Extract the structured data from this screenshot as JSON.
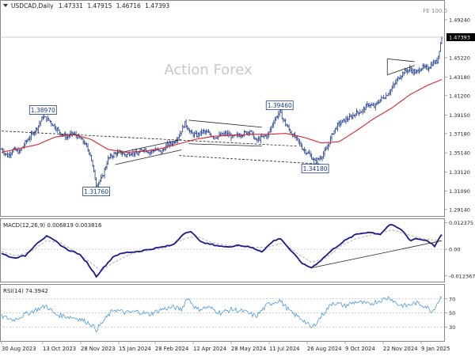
{
  "chart_data": [
    {
      "type": "ohlc",
      "header": {
        "symbol_tf": "USDCAD,Daily",
        "o": "1.47331",
        "h": "1.47915",
        "l": "1.46716",
        "c": "1.47393"
      },
      "fe_label": "FE 100.0",
      "watermark": "Action Forex",
      "current_price": "1.47393",
      "ylim": [
        1.2845,
        1.5125
      ],
      "yticks": [
        "1.49240",
        "1.45220",
        "1.43180",
        "1.41200",
        "1.39150",
        "1.37180",
        "1.35140",
        "1.33120",
        "1.31090",
        "1.29140"
      ],
      "xlabels": [
        "30 Aug 2023",
        "13 Oct 2023",
        "28 Nov 2023",
        "15 Jan 2024",
        "28 Feb 2024",
        "12 Apr 2024",
        "28 May 2024",
        "11 Jul 2024",
        "26 Aug 2024",
        "9 Oct 2024",
        "22 Nov 2024",
        "9 Jan 2025"
      ],
      "xlim": [
        0,
        372
      ],
      "price_anchors": [
        [
          0,
          1.355
        ],
        [
          5,
          1.348
        ],
        [
          10,
          1.355
        ],
        [
          15,
          1.352
        ],
        [
          20,
          1.362
        ],
        [
          25,
          1.37
        ],
        [
          30,
          1.378
        ],
        [
          35,
          1.3897
        ],
        [
          40,
          1.386
        ],
        [
          45,
          1.379
        ],
        [
          50,
          1.372
        ],
        [
          55,
          1.368
        ],
        [
          60,
          1.372
        ],
        [
          65,
          1.368
        ],
        [
          70,
          1.362
        ],
        [
          75,
          1.35
        ],
        [
          80,
          1.3176
        ],
        [
          85,
          1.325
        ],
        [
          90,
          1.345
        ],
        [
          95,
          1.35
        ],
        [
          100,
          1.352
        ],
        [
          105,
          1.349
        ],
        [
          110,
          1.352
        ],
        [
          115,
          1.35
        ],
        [
          120,
          1.356
        ],
        [
          125,
          1.352
        ],
        [
          130,
          1.355
        ],
        [
          135,
          1.352
        ],
        [
          140,
          1.36
        ],
        [
          145,
          1.362
        ],
        [
          150,
          1.37
        ],
        [
          155,
          1.383
        ],
        [
          160,
          1.372
        ],
        [
          165,
          1.37
        ],
        [
          170,
          1.374
        ],
        [
          175,
          1.372
        ],
        [
          180,
          1.368
        ],
        [
          185,
          1.37
        ],
        [
          190,
          1.372
        ],
        [
          195,
          1.368
        ],
        [
          200,
          1.37
        ],
        [
          205,
          1.372
        ],
        [
          210,
          1.375
        ],
        [
          215,
          1.364
        ],
        [
          220,
          1.368
        ],
        [
          225,
          1.37
        ],
        [
          230,
          1.385
        ],
        [
          235,
          1.3946
        ],
        [
          240,
          1.382
        ],
        [
          245,
          1.372
        ],
        [
          250,
          1.365
        ],
        [
          255,
          1.355
        ],
        [
          260,
          1.35
        ],
        [
          265,
          1.3418
        ],
        [
          270,
          1.347
        ],
        [
          275,
          1.356
        ],
        [
          280,
          1.373
        ],
        [
          285,
          1.382
        ],
        [
          290,
          1.386
        ],
        [
          295,
          1.389
        ],
        [
          300,
          1.394
        ],
        [
          305,
          1.396
        ],
        [
          310,
          1.403
        ],
        [
          315,
          1.4
        ],
        [
          320,
          1.408
        ],
        [
          325,
          1.412
        ],
        [
          330,
          1.42
        ],
        [
          335,
          1.43
        ],
        [
          340,
          1.437
        ],
        [
          345,
          1.44
        ],
        [
          350,
          1.436
        ],
        [
          355,
          1.442
        ],
        [
          360,
          1.441
        ],
        [
          365,
          1.447
        ],
        [
          368,
          1.448
        ],
        [
          372,
          1.4739
        ]
      ],
      "sma_anchors": [
        [
          0,
          1.352
        ],
        [
          15,
          1.356
        ],
        [
          30,
          1.36
        ],
        [
          45,
          1.368
        ],
        [
          60,
          1.371
        ],
        [
          75,
          1.366
        ],
        [
          90,
          1.355
        ],
        [
          105,
          1.352
        ],
        [
          120,
          1.353
        ],
        [
          135,
          1.356
        ],
        [
          150,
          1.361
        ],
        [
          165,
          1.366
        ],
        [
          180,
          1.369
        ],
        [
          195,
          1.37
        ],
        [
          210,
          1.371
        ],
        [
          225,
          1.371
        ],
        [
          240,
          1.372
        ],
        [
          255,
          1.368
        ],
        [
          270,
          1.362
        ],
        [
          285,
          1.363
        ],
        [
          300,
          1.375
        ],
        [
          315,
          1.388
        ],
        [
          330,
          1.399
        ],
        [
          345,
          1.413
        ],
        [
          360,
          1.423
        ],
        [
          372,
          1.429
        ]
      ],
      "annotations": [
        {
          "text": "1.38970",
          "x": 35,
          "y": 1.3897,
          "pos": "above"
        },
        {
          "text": "1.31760",
          "x": 80,
          "y": 1.3176,
          "pos": "below"
        },
        {
          "text": "1.39460",
          "x": 235,
          "y": 1.3946,
          "pos": "above"
        },
        {
          "text": "1.34180",
          "x": 265,
          "y": 1.3418,
          "pos": "below"
        }
      ],
      "trendlines": [
        {
          "style": "dashed",
          "points": [
            [
              0,
              1.3745
            ],
            [
              250,
              1.3585
            ]
          ]
        },
        {
          "style": "dashed",
          "points": [
            [
              150,
              1.3485
            ],
            [
              270,
              1.3395
            ]
          ]
        },
        {
          "style": "solid",
          "points": [
            [
              96,
              1.3505
            ],
            [
              152,
              1.3655
            ]
          ]
        },
        {
          "style": "solid",
          "points": [
            [
              96,
              1.339
            ],
            [
              152,
              1.3545
            ]
          ]
        },
        {
          "style": "solid",
          "points": [
            [
              158,
              1.386
            ],
            [
              220,
              1.3785
            ]
          ]
        },
        {
          "style": "solid",
          "points": [
            [
              158,
              1.361
            ],
            [
              220,
              1.3585
            ]
          ]
        },
        {
          "style": "solid",
          "points": [
            [
              326,
              1.451
            ],
            [
              349,
              1.448
            ]
          ]
        },
        {
          "style": "solid",
          "points": [
            [
              326,
              1.434
            ],
            [
              349,
              1.444
            ]
          ]
        },
        {
          "style": "solid",
          "points": [
            [
              326,
              1.451
            ],
            [
              326,
              1.434
            ]
          ]
        }
      ]
    },
    {
      "type": "macd",
      "label": "MACD(12,26,9) 0.006819 0.003816",
      "ylim": [
        -0.015,
        0.014
      ],
      "yticks": [
        "0.012375",
        "0.00",
        "-0.012367"
      ],
      "macd_anchors": [
        [
          0,
          -0.002
        ],
        [
          10,
          -0.004
        ],
        [
          20,
          -0.003
        ],
        [
          30,
          0.003
        ],
        [
          38,
          0.006
        ],
        [
          45,
          0.004
        ],
        [
          55,
          0.0
        ],
        [
          65,
          -0.002
        ],
        [
          72,
          -0.006
        ],
        [
          80,
          -0.0125
        ],
        [
          87,
          -0.008
        ],
        [
          95,
          -0.003
        ],
        [
          105,
          -0.0015
        ],
        [
          115,
          -0.001
        ],
        [
          125,
          0.0
        ],
        [
          135,
          0.001
        ],
        [
          145,
          0.002
        ],
        [
          155,
          0.008
        ],
        [
          160,
          0.008
        ],
        [
          170,
          0.003
        ],
        [
          180,
          0.002
        ],
        [
          190,
          0.001
        ],
        [
          200,
          0.002
        ],
        [
          210,
          0.001
        ],
        [
          220,
          -0.001
        ],
        [
          230,
          0.004
        ],
        [
          236,
          0.005
        ],
        [
          245,
          -0.001
        ],
        [
          255,
          -0.007
        ],
        [
          262,
          -0.0085
        ],
        [
          270,
          -0.005
        ],
        [
          280,
          0.0
        ],
        [
          290,
          0.004
        ],
        [
          300,
          0.007
        ],
        [
          310,
          0.008
        ],
        [
          320,
          0.007
        ],
        [
          328,
          0.0115
        ],
        [
          335,
          0.01
        ],
        [
          340,
          0.008
        ],
        [
          345,
          0.004
        ],
        [
          350,
          0.005
        ],
        [
          360,
          0.004
        ],
        [
          366,
          0.0015
        ],
        [
          372,
          0.006819
        ]
      ],
      "signal_anchors": [
        [
          0,
          -0.001
        ],
        [
          12,
          -0.003
        ],
        [
          25,
          -0.001
        ],
        [
          38,
          0.004
        ],
        [
          50,
          0.003
        ],
        [
          62,
          -0.001
        ],
        [
          75,
          -0.006
        ],
        [
          84,
          -0.01
        ],
        [
          95,
          -0.006
        ],
        [
          110,
          -0.002
        ],
        [
          125,
          -0.0005
        ],
        [
          140,
          0.001
        ],
        [
          155,
          0.005
        ],
        [
          165,
          0.006
        ],
        [
          178,
          0.003
        ],
        [
          195,
          0.0015
        ],
        [
          212,
          0.001
        ],
        [
          225,
          0.001
        ],
        [
          238,
          0.003
        ],
        [
          250,
          -0.002
        ],
        [
          262,
          -0.006
        ],
        [
          274,
          -0.004
        ],
        [
          288,
          0.002
        ],
        [
          300,
          0.005
        ],
        [
          315,
          0.007
        ],
        [
          330,
          0.009
        ],
        [
          342,
          0.007
        ],
        [
          355,
          0.005
        ],
        [
          372,
          0.003816
        ]
      ],
      "trendline": [
        [
          263,
          -0.0085
        ],
        [
          372,
          0.004
        ]
      ]
    },
    {
      "type": "rsi",
      "label": "RSI(14) 74.3942",
      "ylim": [
        10,
        90
      ],
      "yticks": [
        "70",
        "50",
        "30"
      ],
      "rsi_anchors": [
        [
          0,
          45
        ],
        [
          10,
          40
        ],
        [
          20,
          48
        ],
        [
          30,
          55
        ],
        [
          38,
          60
        ],
        [
          45,
          48
        ],
        [
          55,
          45
        ],
        [
          65,
          42
        ],
        [
          75,
          35
        ],
        [
          80,
          26
        ],
        [
          88,
          42
        ],
        [
          95,
          55
        ],
        [
          105,
          50
        ],
        [
          115,
          52
        ],
        [
          125,
          48
        ],
        [
          135,
          55
        ],
        [
          145,
          58
        ],
        [
          152,
          55
        ],
        [
          157,
          72
        ],
        [
          165,
          55
        ],
        [
          175,
          58
        ],
        [
          185,
          50
        ],
        [
          195,
          55
        ],
        [
          205,
          52
        ],
        [
          215,
          45
        ],
        [
          225,
          62
        ],
        [
          235,
          68
        ],
        [
          245,
          50
        ],
        [
          255,
          40
        ],
        [
          262,
          28
        ],
        [
          270,
          45
        ],
        [
          280,
          65
        ],
        [
          290,
          60
        ],
        [
          300,
          66
        ],
        [
          310,
          62
        ],
        [
          320,
          68
        ],
        [
          328,
          72
        ],
        [
          335,
          62
        ],
        [
          342,
          60
        ],
        [
          350,
          64
        ],
        [
          358,
          60
        ],
        [
          364,
          52
        ],
        [
          372,
          74.3942
        ]
      ]
    }
  ]
}
